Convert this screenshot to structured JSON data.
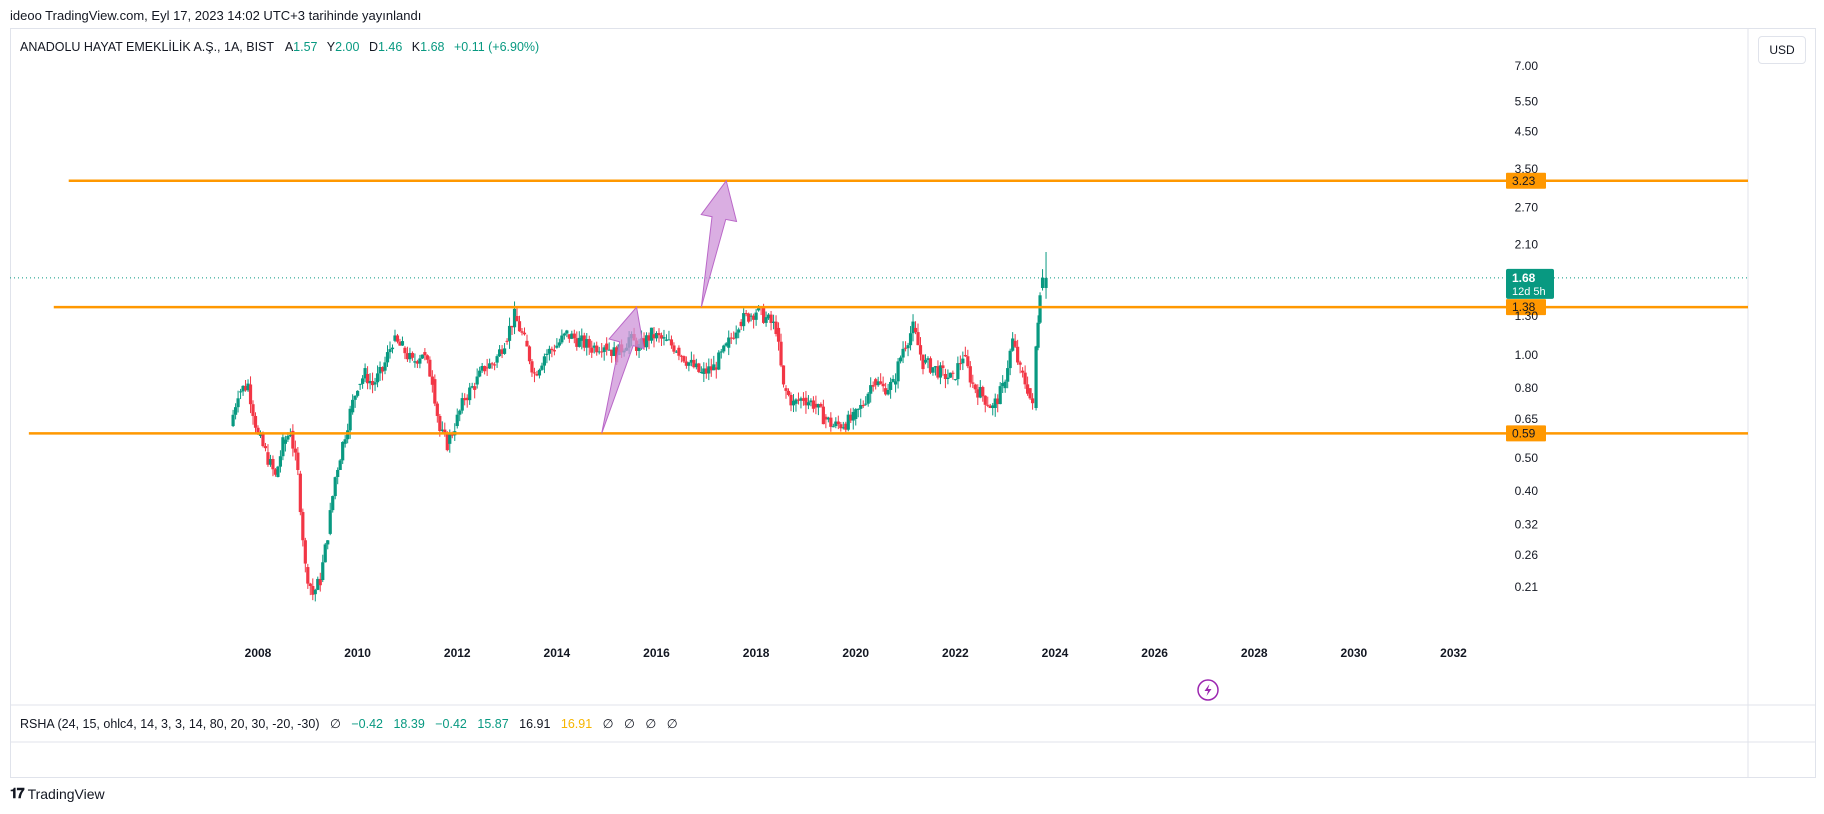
{
  "header": {
    "publish_text": "ideoo TradingView.com, Eyl 17, 2023 14:02 UTC+3 tarihinde yayınlandı"
  },
  "symbol": {
    "name": "ANADOLU HAYAT EMEKLİLİK A.Ş., 1A, BIST",
    "open_label": "A",
    "open": "1.57",
    "high_label": "Y",
    "high": "2.00",
    "low_label": "D",
    "low": "1.46",
    "close_label": "K",
    "close": "1.68",
    "change": "+0.11 (+6.90%)"
  },
  "currency": "USD",
  "indicator": {
    "text": "RSHA (24, 15, ohlc4, 14, 3, 3, 14, 80, 20, 30, -20, -30)",
    "v1": "∅",
    "v2": "−0.42",
    "v3": "18.39",
    "v4": "−0.42",
    "v5": "15.87",
    "v6": "16.91",
    "v7": "16.91",
    "v8": "∅",
    "v9": "∅",
    "v10": "∅",
    "v11": "∅"
  },
  "footer": {
    "brand": "TradingView"
  },
  "colors": {
    "up": "#089981",
    "down": "#f23645",
    "level": "#ff9800",
    "arrow": "#ce93d8",
    "price_tag": "#089981"
  },
  "chart_data": {
    "type": "candlestick",
    "scale": "log",
    "y_ticks": [
      "7.00",
      "5.50",
      "4.50",
      "3.50",
      "2.70",
      "2.10",
      "1.30",
      "1.00",
      "0.80",
      "0.65",
      "0.50",
      "0.40",
      "0.32",
      "0.26",
      "0.21"
    ],
    "y_tick_values": [
      7.0,
      5.5,
      4.5,
      3.5,
      2.7,
      2.1,
      1.3,
      1.0,
      0.8,
      0.65,
      0.5,
      0.4,
      0.32,
      0.26,
      0.21
    ],
    "x_ticks": [
      "2008",
      "2010",
      "2012",
      "2014",
      "2016",
      "2018",
      "2020",
      "2022",
      "2024",
      "2026",
      "2028",
      "2030",
      "2032"
    ],
    "x_tick_years": [
      2008,
      2010,
      2012,
      2014,
      2016,
      2018,
      2020,
      2022,
      2024,
      2026,
      2028,
      2030,
      2032
    ],
    "horizontal_levels": [
      {
        "value": 3.23,
        "label": "3.23",
        "from_year": 2004.2
      },
      {
        "value": 1.38,
        "label": "1.38",
        "from_year": 2003.9
      },
      {
        "value": 0.59,
        "label": "0.59",
        "from_year": 2003.4
      }
    ],
    "last_price": {
      "value": 1.68,
      "label": "1.68",
      "countdown": "12d 5h"
    },
    "arrows": [
      {
        "from_year": 2014.9,
        "from_value": 0.59,
        "to_year": 2015.6,
        "to_value": 1.38
      },
      {
        "from_year": 2016.9,
        "from_value": 1.38,
        "to_year": 2017.4,
        "to_value": 3.23
      }
    ],
    "series_points": [
      [
        2007.45,
        0.62
      ],
      [
        2007.6,
        0.78
      ],
      [
        2007.8,
        0.82
      ],
      [
        2008.0,
        0.58
      ],
      [
        2008.15,
        0.52
      ],
      [
        2008.35,
        0.44
      ],
      [
        2008.5,
        0.55
      ],
      [
        2008.65,
        0.6
      ],
      [
        2008.8,
        0.45
      ],
      [
        2008.95,
        0.24
      ],
      [
        2009.1,
        0.2
      ],
      [
        2009.25,
        0.22
      ],
      [
        2009.4,
        0.3
      ],
      [
        2009.55,
        0.44
      ],
      [
        2009.7,
        0.55
      ],
      [
        2009.85,
        0.68
      ],
      [
        2010.0,
        0.82
      ],
      [
        2010.15,
        0.88
      ],
      [
        2010.3,
        0.82
      ],
      [
        2010.5,
        0.9
      ],
      [
        2010.7,
        1.1
      ],
      [
        2010.9,
        1.05
      ],
      [
        2011.1,
        0.95
      ],
      [
        2011.3,
        1.02
      ],
      [
        2011.5,
        0.85
      ],
      [
        2011.65,
        0.6
      ],
      [
        2011.8,
        0.55
      ],
      [
        2011.95,
        0.62
      ],
      [
        2012.15,
        0.75
      ],
      [
        2012.35,
        0.82
      ],
      [
        2012.55,
        0.92
      ],
      [
        2012.75,
        0.95
      ],
      [
        2012.95,
        1.1
      ],
      [
        2013.15,
        1.3
      ],
      [
        2013.35,
        1.1
      ],
      [
        2013.55,
        0.88
      ],
      [
        2013.75,
        1.0
      ],
      [
        2013.95,
        1.05
      ],
      [
        2014.2,
        1.15
      ],
      [
        2014.45,
        1.1
      ],
      [
        2014.7,
        1.05
      ],
      [
        2014.95,
        1.08
      ],
      [
        2015.2,
        1.0
      ],
      [
        2015.45,
        1.12
      ],
      [
        2015.65,
        1.05
      ],
      [
        2015.9,
        1.15
      ],
      [
        2016.15,
        1.1
      ],
      [
        2016.4,
        1.05
      ],
      [
        2016.65,
        0.95
      ],
      [
        2016.9,
        0.88
      ],
      [
        2017.15,
        0.92
      ],
      [
        2017.4,
        1.05
      ],
      [
        2017.65,
        1.25
      ],
      [
        2017.85,
        1.3
      ],
      [
        2018.0,
        1.35
      ],
      [
        2018.2,
        1.28
      ],
      [
        2018.4,
        1.2
      ],
      [
        2018.55,
        0.8
      ],
      [
        2018.75,
        0.72
      ],
      [
        2018.95,
        0.75
      ],
      [
        2019.15,
        0.72
      ],
      [
        2019.35,
        0.66
      ],
      [
        2019.55,
        0.62
      ],
      [
        2019.75,
        0.63
      ],
      [
        2019.95,
        0.65
      ],
      [
        2020.15,
        0.72
      ],
      [
        2020.35,
        0.85
      ],
      [
        2020.55,
        0.8
      ],
      [
        2020.75,
        0.82
      ],
      [
        2020.95,
        1.05
      ],
      [
        2021.15,
        1.2
      ],
      [
        2021.35,
        0.95
      ],
      [
        2021.55,
        0.92
      ],
      [
        2021.75,
        0.88
      ],
      [
        2021.95,
        0.85
      ],
      [
        2022.15,
        1.0
      ],
      [
        2022.35,
        0.82
      ],
      [
        2022.55,
        0.76
      ],
      [
        2022.75,
        0.7
      ],
      [
        2022.95,
        0.8
      ],
      [
        2023.15,
        1.1
      ],
      [
        2023.3,
        0.9
      ],
      [
        2023.45,
        0.8
      ],
      [
        2023.55,
        0.7
      ],
      [
        2023.62,
        1.05
      ],
      [
        2023.7,
        1.57
      ],
      [
        2023.75,
        1.68
      ]
    ],
    "last_candle": {
      "open": 1.57,
      "high": 2.0,
      "low": 1.46,
      "close": 1.68
    }
  }
}
